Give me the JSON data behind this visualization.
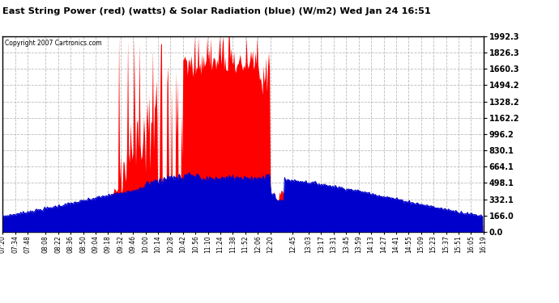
{
  "title": "East String Power (red) (watts) & Solar Radiation (blue) (W/m2) Wed Jan 24 16:51",
  "copyright": "Copyright 2007 Cartronics.com",
  "yticks": [
    0.0,
    166.0,
    332.1,
    498.1,
    664.1,
    830.1,
    996.2,
    1162.2,
    1328.2,
    1494.2,
    1660.3,
    1826.3,
    1992.3
  ],
  "ymax": 1992.3,
  "ymin": 0.0,
  "bg_color": "#ffffff",
  "grid_color": "#aaaaaa",
  "red_color": "#ff0000",
  "blue_color": "#0000cc",
  "x_labels": [
    "07:20",
    "07:34",
    "07:48",
    "08:08",
    "08:22",
    "08:36",
    "08:50",
    "09:04",
    "09:18",
    "09:32",
    "09:46",
    "10:00",
    "10:14",
    "10:28",
    "10:42",
    "10:56",
    "11:10",
    "11:24",
    "11:38",
    "11:52",
    "12:06",
    "12:20",
    "12:45",
    "13:03",
    "13:17",
    "13:31",
    "13:45",
    "13:59",
    "14:13",
    "14:27",
    "14:41",
    "14:55",
    "15:09",
    "15:23",
    "15:37",
    "15:51",
    "16:05",
    "16:19"
  ]
}
